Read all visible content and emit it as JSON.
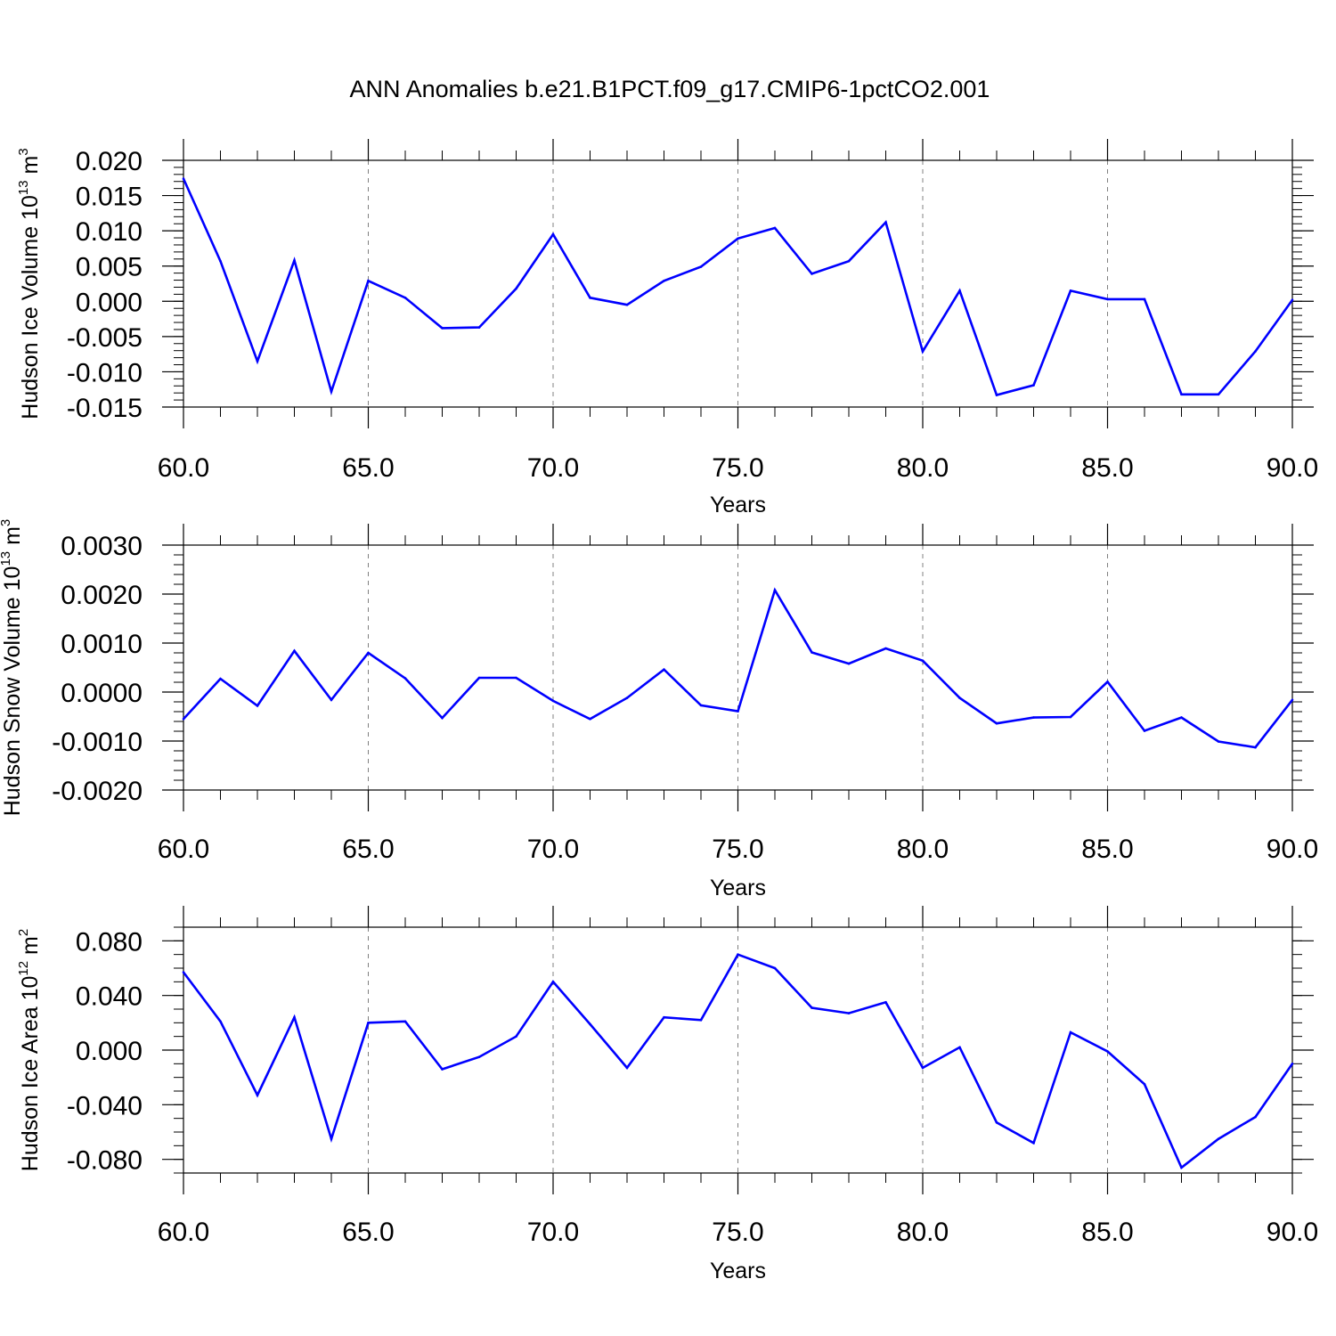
{
  "title": "ANN Anomalies b.e21.B1PCT.f09_g17.CMIP6-1pctCO2.001",
  "colors": {
    "line": "#0000ff",
    "axis": "#000000",
    "grid": "#808080",
    "background": "#ffffff"
  },
  "chart_data": [
    {
      "type": "line",
      "xlabel": "Years",
      "ylabel": {
        "text": "Hudson Ice Volume 10",
        "exponent": "13",
        "unit": " m",
        "unit_exponent": "3"
      },
      "xlim": [
        60,
        90
      ],
      "ylim": [
        -0.015,
        0.02
      ],
      "grid": "vertical dashed lines at major x ticks",
      "x_ticks": [
        60,
        65,
        70,
        75,
        80,
        85,
        90
      ],
      "x_tick_labels": [
        "60.0",
        "65.0",
        "70.0",
        "75.0",
        "80.0",
        "85.0",
        "90.0"
      ],
      "y_ticks": [
        -0.015,
        -0.01,
        -0.005,
        0.0,
        0.005,
        0.01,
        0.015,
        0.02
      ],
      "y_tick_labels": [
        "-0.015",
        "-0.010",
        "-0.005",
        "0.000",
        "0.005",
        "0.010",
        "0.015",
        "0.020"
      ],
      "y_minor_step": 0.001,
      "x": [
        60,
        61,
        62,
        63,
        64,
        65,
        66,
        67,
        68,
        69,
        70,
        71,
        72,
        73,
        74,
        75,
        76,
        77,
        78,
        79,
        80,
        81,
        82,
        83,
        84,
        85,
        86,
        87,
        88,
        89,
        90
      ],
      "values": [
        0.0174,
        0.0057,
        -0.0085,
        0.0058,
        -0.0128,
        0.0029,
        0.0005,
        -0.0038,
        -0.0037,
        0.0018,
        0.0095,
        0.0005,
        -0.0005,
        0.0029,
        0.0049,
        0.0089,
        0.0104,
        0.0039,
        0.0057,
        0.0112,
        -0.0071,
        0.0015,
        -0.0133,
        -0.0119,
        0.0015,
        0.0003,
        0.0003,
        -0.0132,
        -0.0132,
        -0.0071,
        0.0002
      ]
    },
    {
      "type": "line",
      "xlabel": "Years",
      "ylabel": {
        "text": "Hudson Snow Volume 10",
        "exponent": "13",
        "unit": " m",
        "unit_exponent": "3"
      },
      "xlim": [
        60,
        90
      ],
      "ylim": [
        -0.002,
        0.003
      ],
      "grid": "vertical dashed lines at major x ticks",
      "x_ticks": [
        60,
        65,
        70,
        75,
        80,
        85,
        90
      ],
      "x_tick_labels": [
        "60.0",
        "65.0",
        "70.0",
        "75.0",
        "80.0",
        "85.0",
        "90.0"
      ],
      "y_ticks": [
        -0.002,
        -0.001,
        0.0,
        0.001,
        0.002,
        0.003
      ],
      "y_tick_labels": [
        "-0.0020",
        "-0.0010",
        "0.0000",
        "0.0010",
        "0.0020",
        "0.0030"
      ],
      "y_minor_step": 0.0002,
      "x": [
        60,
        61,
        62,
        63,
        64,
        65,
        66,
        67,
        68,
        69,
        70,
        71,
        72,
        73,
        74,
        75,
        76,
        77,
        78,
        79,
        80,
        81,
        82,
        83,
        84,
        85,
        86,
        87,
        88,
        89,
        90
      ],
      "values": [
        -0.00055,
        0.00027,
        -0.00028,
        0.00084,
        -0.00016,
        0.0008,
        0.00028,
        -0.00053,
        0.00029,
        0.00029,
        -0.00018,
        -0.00055,
        -0.00012,
        0.00046,
        -0.00027,
        -0.00039,
        0.00208,
        0.00081,
        0.00058,
        0.00089,
        0.00064,
        -0.00012,
        -0.00064,
        -0.00052,
        -0.00051,
        0.00021,
        -0.00079,
        -0.00052,
        -0.00101,
        -0.00113,
        -0.00016
      ]
    },
    {
      "type": "line",
      "xlabel": "Years",
      "ylabel": {
        "text": "Hudson Ice Area 10",
        "exponent": "12",
        "unit": " m",
        "unit_exponent": "2"
      },
      "xlim": [
        60,
        90
      ],
      "ylim": [
        -0.09,
        0.09
      ],
      "grid": "vertical dashed lines at major x ticks",
      "x_ticks": [
        60,
        65,
        70,
        75,
        80,
        85,
        90
      ],
      "x_tick_labels": [
        "60.0",
        "65.0",
        "70.0",
        "75.0",
        "80.0",
        "85.0",
        "90.0"
      ],
      "y_ticks": [
        -0.08,
        -0.04,
        0.0,
        0.04,
        0.08
      ],
      "y_tick_labels": [
        "-0.080",
        "-0.040",
        "0.000",
        "0.040",
        "0.080"
      ],
      "y_minor_step": 0.01,
      "x": [
        60,
        61,
        62,
        63,
        64,
        65,
        66,
        67,
        68,
        69,
        70,
        71,
        72,
        73,
        74,
        75,
        76,
        77,
        78,
        79,
        80,
        81,
        82,
        83,
        84,
        85,
        86,
        87,
        88,
        89,
        90
      ],
      "values": [
        0.057,
        0.021,
        -0.033,
        0.024,
        -0.065,
        0.02,
        0.021,
        -0.014,
        -0.005,
        0.01,
        0.05,
        0.019,
        -0.013,
        0.024,
        0.022,
        0.07,
        0.06,
        0.031,
        0.027,
        0.035,
        -0.013,
        0.002,
        -0.053,
        -0.068,
        0.013,
        -0.001,
        -0.025,
        -0.086,
        -0.065,
        -0.049,
        -0.01
      ]
    }
  ]
}
